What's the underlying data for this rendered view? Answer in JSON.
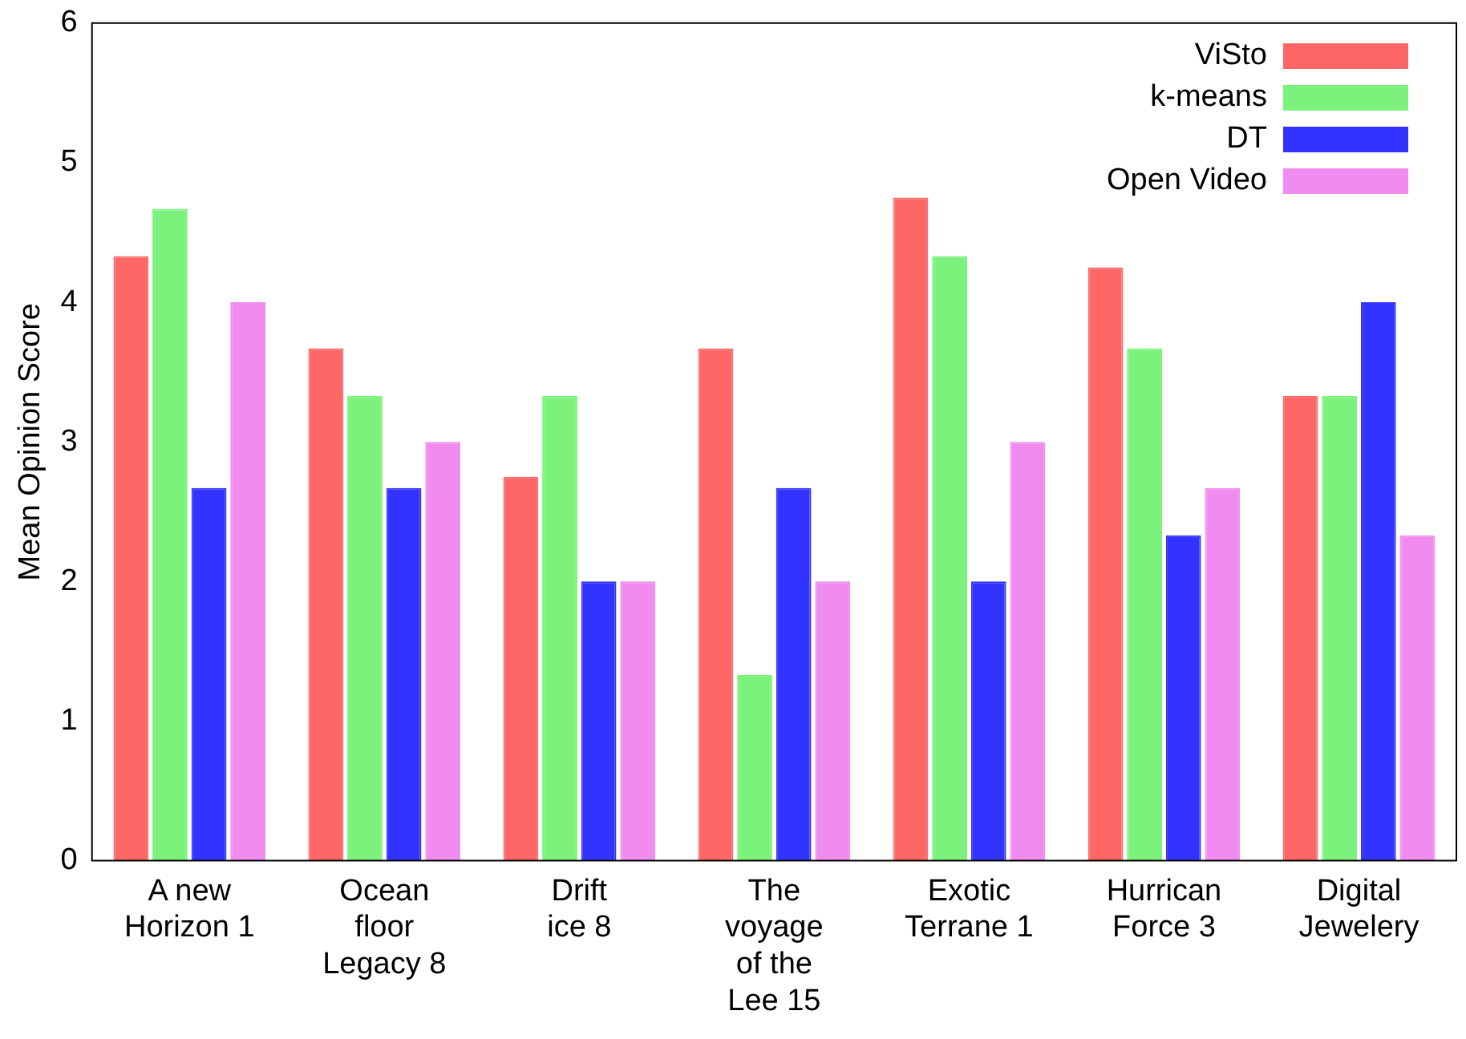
{
  "chart_data": {
    "type": "bar",
    "ylabel": "Mean Opinion Score",
    "categories": [
      "A new\nHorizon 1",
      "Ocean\nfloor\nLegacy 8",
      "Drift\nice 8",
      "The\nvoyage\nof the\nLee 15",
      "Exotic\nTerrane 1",
      "Hurrican\nForce 3",
      "Digital\nJewelery"
    ],
    "series": [
      {
        "name": "ViSto",
        "color": "#ff6666",
        "values": [
          4.33,
          3.67,
          2.75,
          3.67,
          4.75,
          4.25,
          3.33
        ]
      },
      {
        "name": "k-means",
        "color": "#7cf27c",
        "values": [
          4.67,
          3.33,
          3.33,
          1.33,
          4.33,
          3.67,
          3.33
        ]
      },
      {
        "name": "DT",
        "color": "#3333ff",
        "values": [
          2.67,
          2.67,
          2.0,
          2.67,
          2.0,
          2.33,
          4.0
        ]
      },
      {
        "name": "Open Video",
        "color": "#f08cf0",
        "values": [
          4.0,
          3.0,
          2.0,
          2.0,
          3.0,
          2.67,
          2.33
        ]
      }
    ],
    "ylim": [
      0,
      6
    ],
    "yticks": [
      0,
      1,
      2,
      3,
      4,
      5,
      6
    ],
    "grid": false,
    "legend": "top right"
  }
}
